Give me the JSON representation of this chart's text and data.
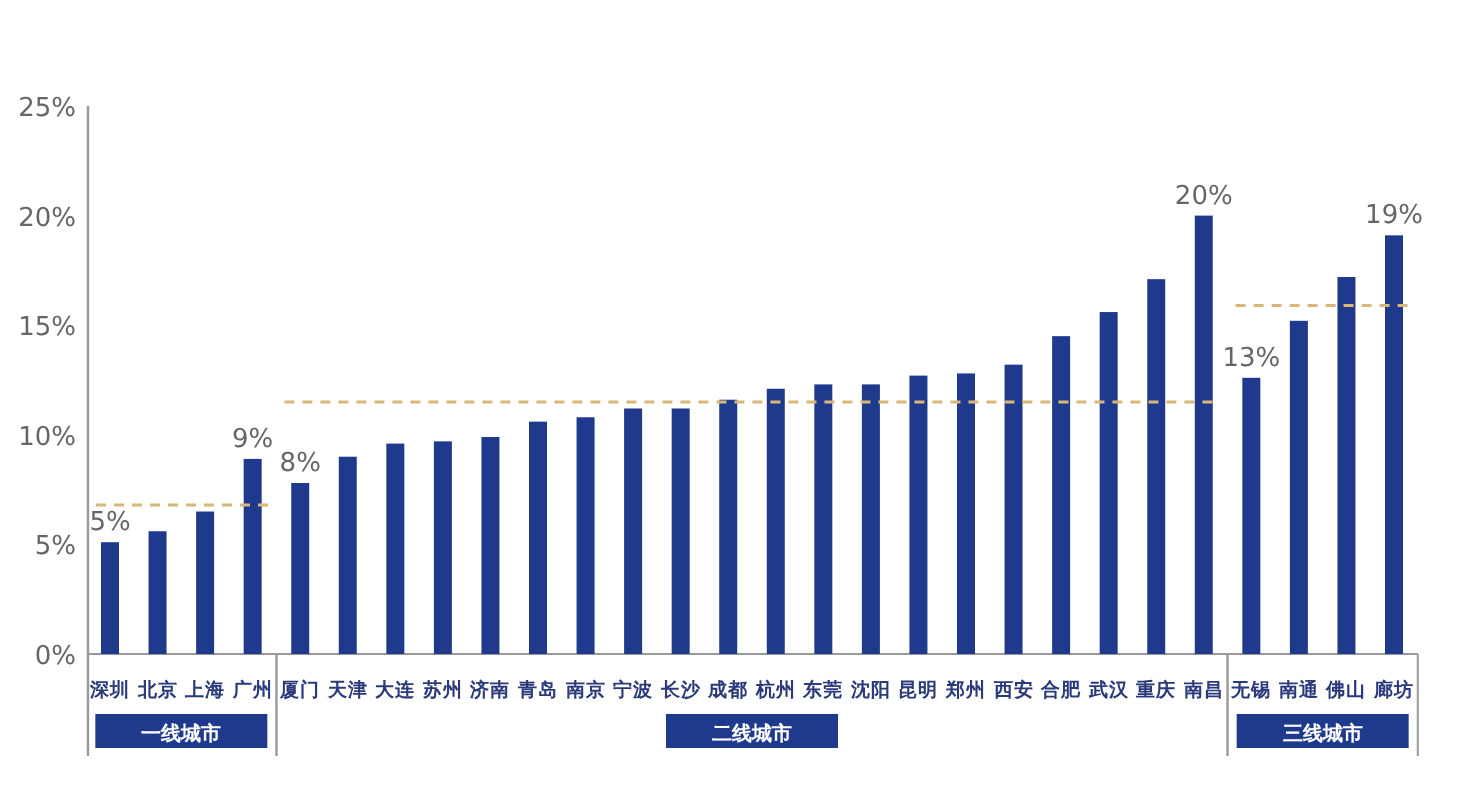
{
  "chart_data": [
    {
      "type": "bar",
      "xlabel": "一线城市",
      "categories": [
        "深圳",
        "北京",
        "上海",
        "广州"
      ],
      "values": [
        5.1,
        5.6,
        6.5,
        8.9
      ],
      "value_labels": [
        "5%",
        null,
        null,
        "9%"
      ],
      "color": "#1f3a8c",
      "ylim": [
        0,
        25
      ],
      "yticks": [
        {
          "value": 0,
          "label": "0%"
        },
        {
          "value": 5,
          "label": "5%"
        },
        {
          "value": 10,
          "label": "10%"
        },
        {
          "value": 15,
          "label": "15%"
        },
        {
          "value": 20,
          "label": "20%"
        },
        {
          "value": 25,
          "label": "25%"
        }
      ],
      "ref_lines": [
        {
          "axis": "y",
          "value": 6.8,
          "label": null,
          "color": "#d8b878",
          "line_style": "dashed"
        }
      ]
    },
    {
      "type": "bar",
      "xlabel": "二线城市",
      "categories": [
        "厦门",
        "天津",
        "大连",
        "苏州",
        "济南",
        "青岛",
        "南京",
        "宁波",
        "长沙",
        "成都",
        "杭州",
        "东莞",
        "沈阳",
        "昆明",
        "郑州",
        "西安",
        "合肥",
        "武汉",
        "重庆",
        "南昌"
      ],
      "values": [
        7.8,
        9.0,
        9.6,
        9.7,
        9.9,
        10.6,
        10.8,
        11.2,
        11.2,
        11.6,
        12.1,
        12.3,
        12.3,
        12.7,
        12.8,
        13.2,
        14.5,
        15.6,
        17.1,
        20.0
      ],
      "value_labels": [
        "8%",
        null,
        null,
        null,
        null,
        null,
        null,
        null,
        null,
        null,
        null,
        null,
        null,
        null,
        null,
        null,
        null,
        null,
        null,
        "20%"
      ],
      "color": "#1f3a8c",
      "ylim": [
        0,
        25
      ],
      "tick_labels": "x",
      "ref_lines": [
        {
          "axis": "y",
          "value": 11.5,
          "label": null,
          "color": "#d8b878",
          "line_style": "dashed"
        }
      ]
    },
    {
      "type": "bar",
      "xlabel": "三线城市",
      "categories": [
        "无锡",
        "南通",
        "佛山",
        "廊坊"
      ],
      "values": [
        12.6,
        15.2,
        17.2,
        19.1
      ],
      "value_labels": [
        "13%",
        null,
        null,
        "19%"
      ],
      "color": "#1f3a8c",
      "ylim": [
        0,
        25
      ],
      "tick_labels": "x",
      "ref_lines": [
        {
          "axis": "y",
          "value": 15.9,
          "label": null,
          "color": "#d8b878",
          "line_style": "dashed"
        }
      ]
    }
  ]
}
